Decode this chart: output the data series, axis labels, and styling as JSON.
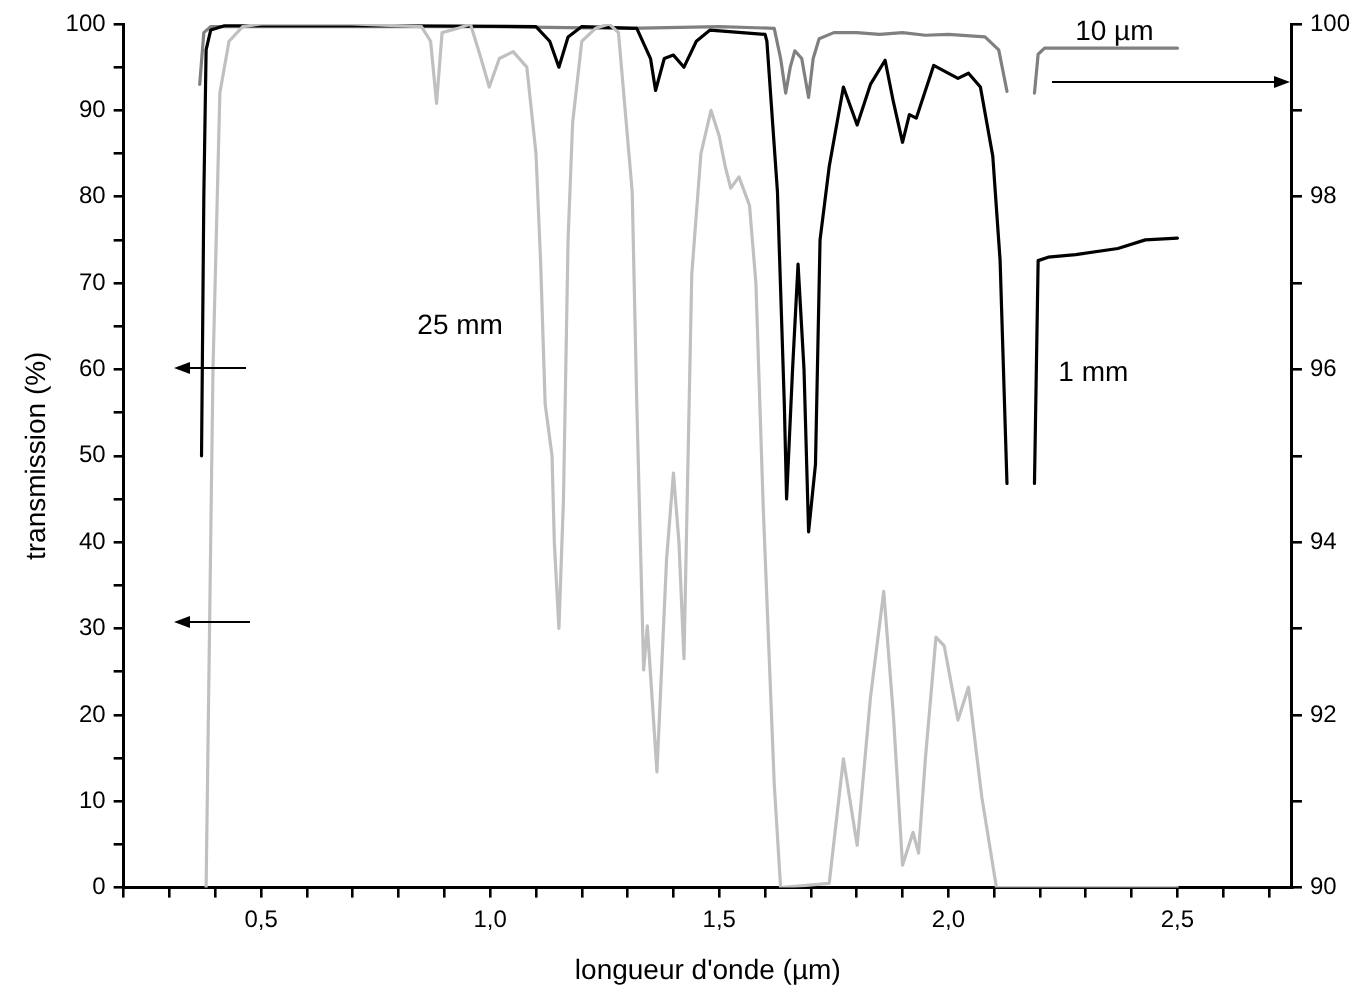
{
  "chart_data": {
    "type": "line",
    "xlabel": "longueur d'onde (µm)",
    "ylabel": "transmission (%)",
    "marker": "none",
    "line_style": "solid",
    "xlim": [
      0.2,
      2.75
    ],
    "xticks": [
      {
        "value": 0.2,
        "label": null
      },
      {
        "value": 0.3,
        "label": null
      },
      {
        "value": 0.4,
        "label": null
      },
      {
        "value": 0.5,
        "label": "0,5"
      },
      {
        "value": 0.6,
        "label": null
      },
      {
        "value": 0.7,
        "label": null
      },
      {
        "value": 0.8,
        "label": null
      },
      {
        "value": 0.9,
        "label": null
      },
      {
        "value": 1.0,
        "label": "1,0"
      },
      {
        "value": 1.1,
        "label": null
      },
      {
        "value": 1.2,
        "label": null
      },
      {
        "value": 1.3,
        "label": null
      },
      {
        "value": 1.4,
        "label": null
      },
      {
        "value": 1.5,
        "label": "1,5"
      },
      {
        "value": 1.6,
        "label": null
      },
      {
        "value": 1.7,
        "label": null
      },
      {
        "value": 1.8,
        "label": null
      },
      {
        "value": 1.9,
        "label": null
      },
      {
        "value": 2.0,
        "label": "2,0"
      },
      {
        "value": 2.1,
        "label": null
      },
      {
        "value": 2.2,
        "label": null
      },
      {
        "value": 2.3,
        "label": null
      },
      {
        "value": 2.4,
        "label": null
      },
      {
        "value": 2.5,
        "label": "2,5"
      },
      {
        "value": 2.6,
        "label": null
      },
      {
        "value": 2.7,
        "label": null
      }
    ],
    "ylim": [
      0,
      100
    ],
    "yticks": [
      0,
      {
        "value": 5,
        "label": null
      },
      10,
      {
        "value": 15,
        "label": null
      },
      20,
      {
        "value": 25,
        "label": null
      },
      30,
      {
        "value": 35,
        "label": null
      },
      40,
      {
        "value": 45,
        "label": null
      },
      50,
      {
        "value": 55,
        "label": null
      },
      60,
      {
        "value": 65,
        "label": null
      },
      70,
      {
        "value": 75,
        "label": null
      },
      80,
      {
        "value": 85,
        "label": null
      },
      90,
      {
        "value": 95,
        "label": null
      },
      100
    ],
    "y2lim": [
      90,
      100
    ],
    "y2ticks": [
      90,
      {
        "value": 91,
        "label": null
      },
      92,
      {
        "value": 93,
        "label": null
      },
      94,
      {
        "value": 95,
        "label": null
      },
      96,
      {
        "value": 97,
        "label": null
      },
      98,
      {
        "value": 99,
        "label": null
      },
      100
    ],
    "series": [
      {
        "name": "25 mm",
        "color": "#c0c0c0",
        "x": [
          0.38,
          0.395,
          0.41,
          0.43,
          0.46,
          0.5,
          0.7,
          0.85,
          0.87,
          0.883,
          0.895,
          0.93,
          0.957,
          0.98,
          0.998,
          1.02,
          1.05,
          1.08,
          1.1,
          1.11,
          1.12,
          1.135,
          1.14,
          1.15,
          1.16,
          1.17,
          1.18,
          1.2,
          1.23,
          1.26,
          1.28,
          1.31,
          1.32,
          1.335,
          1.343,
          1.364,
          1.385,
          1.4,
          1.412,
          1.423,
          1.44,
          1.46,
          1.482,
          1.5,
          1.513,
          1.525,
          1.543,
          1.566,
          1.58,
          1.596,
          1.62,
          1.634,
          1.74,
          1.771,
          1.801,
          1.83,
          1.859,
          1.88,
          1.9,
          1.923,
          1.935,
          1.95,
          1.973,
          1.991,
          2.021,
          2.044,
          2.073,
          2.105,
          2.5
        ],
        "values": [
          0,
          60,
          92,
          98,
          99.7,
          100,
          100,
          99.7,
          98,
          90.8,
          99,
          99.5,
          100,
          96,
          92.7,
          96,
          96.8,
          95,
          85,
          72.6,
          56,
          50,
          40,
          30,
          45,
          75,
          88.6,
          98,
          99.5,
          100,
          99,
          80.6,
          56,
          25.2,
          30.3,
          13.4,
          38,
          48,
          40,
          26.5,
          71,
          85,
          90,
          87,
          83.5,
          81,
          82.3,
          79,
          70,
          44,
          12,
          0,
          0.5,
          14.9,
          4.9,
          22,
          34.3,
          20,
          2.6,
          6.4,
          4,
          15,
          29,
          28,
          19.4,
          23.2,
          10.5,
          0,
          0
        ]
      },
      {
        "name": "1 mm",
        "color": "#000000",
        "x": [
          0.37,
          0.375,
          0.38,
          0.39,
          0.42,
          0.8,
          1.1,
          1.13,
          1.15,
          1.17,
          1.2,
          1.32,
          1.35,
          1.361,
          1.38,
          1.4,
          1.423,
          1.45,
          1.48,
          1.6,
          1.604,
          1.627,
          1.642,
          1.647,
          1.66,
          1.672,
          1.685,
          1.695,
          1.71,
          1.72,
          1.74,
          1.771,
          1.801,
          1.83,
          1.862,
          1.88,
          1.9,
          1.915,
          1.93,
          1.968,
          2.021,
          2.044,
          2.07,
          2.097,
          2.113,
          2.128,
          2.16,
          2.188,
          2.196,
          2.218,
          2.278,
          2.37,
          2.43,
          2.5
        ],
        "values": [
          50,
          80,
          97,
          99.3,
          99.8,
          99.8,
          99.7,
          98,
          95,
          98.5,
          99.7,
          99.5,
          96,
          92.3,
          96,
          96.4,
          95,
          98,
          99.3,
          98.8,
          98,
          80.6,
          56,
          45,
          60,
          72.2,
          60,
          41.2,
          49,
          75,
          83.5,
          92.7,
          88.3,
          93,
          95.8,
          91,
          86.3,
          89.5,
          89.1,
          95.2,
          93.7,
          94.3,
          92.7,
          84.7,
          72.6,
          46.8,
          null,
          46.8,
          72.6,
          73,
          73.3,
          74,
          75,
          75.2
        ]
      },
      {
        "name": "10 µm",
        "color": "#808080",
        "axis": "y2",
        "x": [
          0.366,
          0.375,
          0.39,
          1.0,
          1.3,
          1.5,
          1.62,
          1.634,
          1.645,
          1.655,
          1.665,
          1.68,
          1.695,
          1.705,
          1.718,
          1.75,
          1.8,
          1.85,
          1.9,
          1.95,
          2.0,
          2.08,
          2.11,
          2.128,
          2.16,
          2.188,
          2.196,
          2.21,
          2.5
        ],
        "values": [
          99.3,
          99.9,
          99.97,
          99.97,
          99.95,
          99.97,
          99.95,
          99.6,
          99.2,
          99.5,
          99.69,
          99.6,
          99.15,
          99.6,
          99.83,
          99.9,
          99.9,
          99.88,
          99.9,
          99.87,
          99.88,
          99.85,
          99.7,
          99.22,
          null,
          99.2,
          99.65,
          99.72,
          99.72
        ]
      }
    ]
  }
}
